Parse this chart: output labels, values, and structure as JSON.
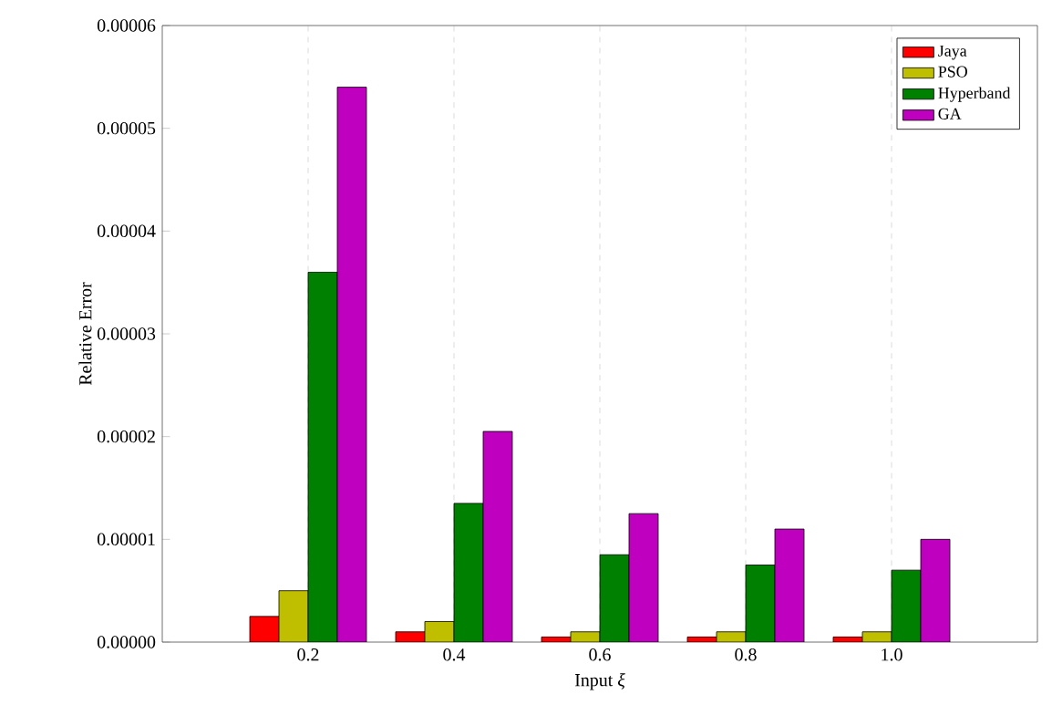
{
  "chart_data": {
    "type": "bar",
    "xlabel": "Input *ξ*",
    "ylabel": "Relative Error",
    "x": [
      0.2,
      0.4,
      0.6,
      0.8,
      1.0
    ],
    "series": [
      {
        "name": "Jaya",
        "color": "#ff0000",
        "values": [
          2.5e-06,
          1e-06,
          5e-07,
          5e-07,
          5e-07
        ]
      },
      {
        "name": "PSO",
        "color": "#bfbf00",
        "values": [
          5e-06,
          2e-06,
          1e-06,
          1e-06,
          1e-06
        ]
      },
      {
        "name": "Hyperband",
        "color": "#008000",
        "values": [
          3.6e-05,
          1.35e-05,
          8.5e-06,
          7.5e-06,
          7e-06
        ]
      },
      {
        "name": "GA",
        "color": "#bf00bf",
        "values": [
          5.4e-05,
          2.05e-05,
          1.25e-05,
          1.1e-05,
          1e-05
        ]
      }
    ],
    "xlim": [
      0,
      1.2
    ],
    "xticks": [
      0.2,
      0.4,
      0.6,
      0.8,
      {
        "value": 1.0,
        "label": "1.0"
      }
    ],
    "ylim": [
      0,
      6e-05
    ],
    "yticks": [
      {
        "value": 0,
        "label": "0.00000"
      },
      {
        "value": 1e-05,
        "label": "0.00001"
      },
      {
        "value": 2e-05,
        "label": "0.00002"
      },
      {
        "value": 3e-05,
        "label": "0.00003"
      },
      {
        "value": 4e-05,
        "label": "0.00004"
      },
      {
        "value": 5e-05,
        "label": "0.00005"
      },
      {
        "value": 6e-05,
        "label": "0.00006"
      }
    ],
    "grid": "x",
    "legend": "top right"
  }
}
